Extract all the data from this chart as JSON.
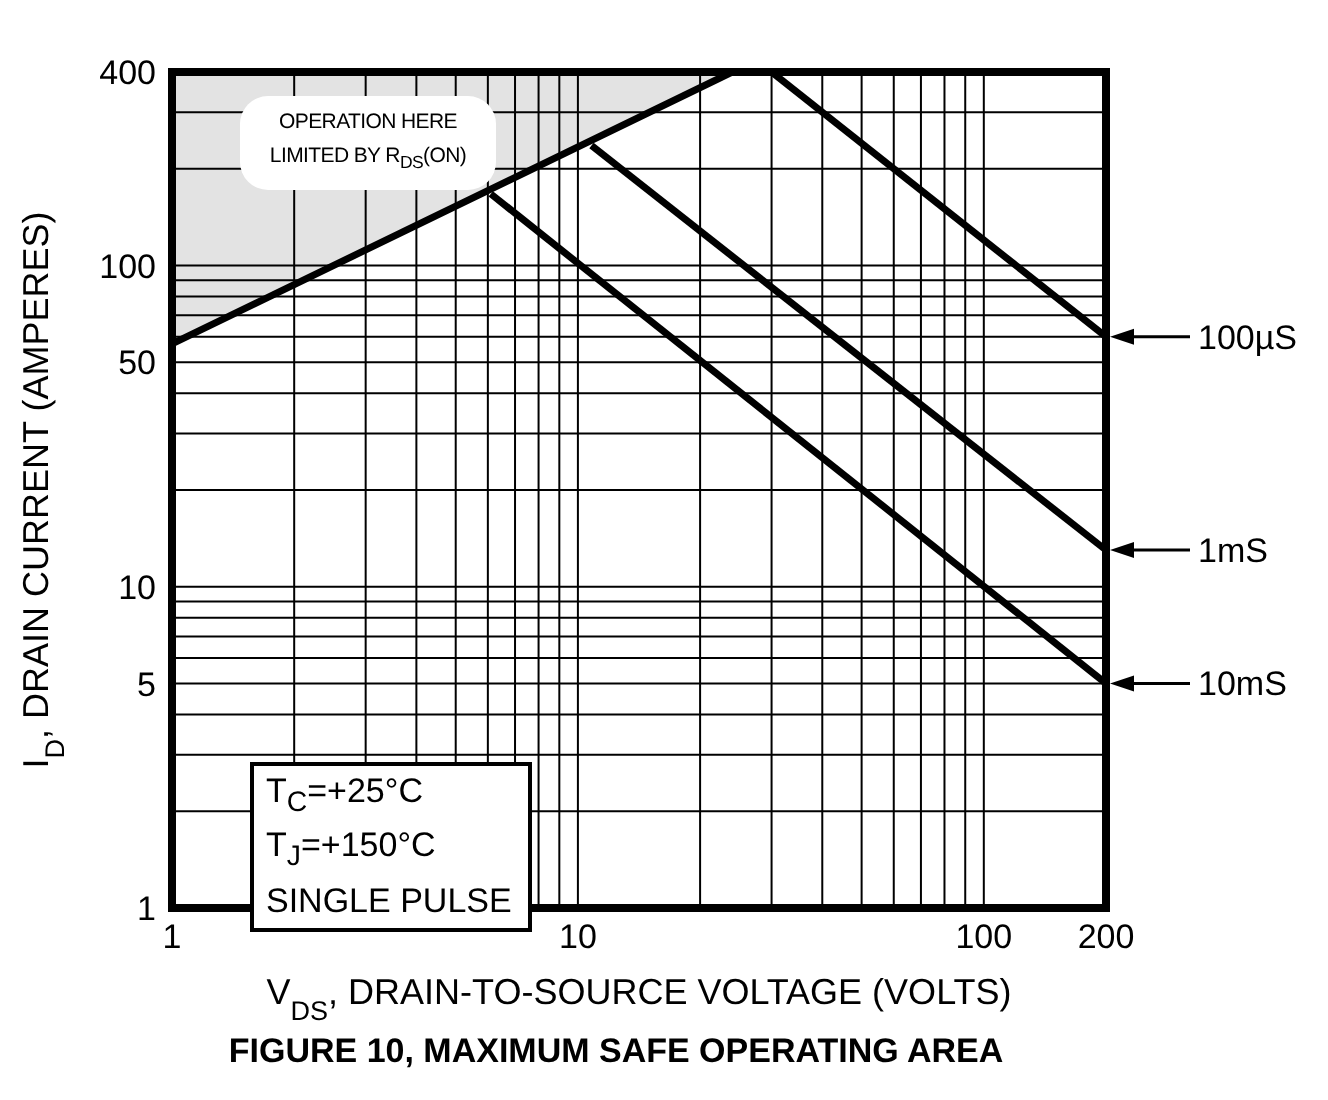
{
  "chart_data": {
    "type": "line",
    "title": "FIGURE 10, MAXIMUM SAFE OPERATING AREA",
    "xlabel": "V$_{DS}$, DRAIN-TO-SOURCE VOLTAGE (VOLTS)",
    "ylabel": "I$_{D}$, DRAIN CURRENT (AMPERES)",
    "annotations": [
      "OPERATION HERE LIMITED BY R$_{DS}$(ON)",
      "T$_{C}$=+25°C",
      "T$_{J}$=+150°C",
      "SINGLE PULSE"
    ],
    "log": "xy",
    "grid": true,
    "legend": "right",
    "marker": "none",
    "line_style": "solid",
    "xlim": [
      1,
      200
    ],
    "ylim": [
      1,
      400
    ],
    "xticks": [
      1,
      {
        "value": 2,
        "label": null
      },
      {
        "value": 3,
        "label": null
      },
      {
        "value": 4,
        "label": null
      },
      {
        "value": 5,
        "label": null
      },
      {
        "value": 6,
        "label": null
      },
      {
        "value": 7,
        "label": null
      },
      {
        "value": 8,
        "label": null
      },
      {
        "value": 9,
        "label": null
      },
      10,
      {
        "value": 20,
        "label": null
      },
      {
        "value": 30,
        "label": null
      },
      {
        "value": 40,
        "label": null
      },
      {
        "value": 50,
        "label": null
      },
      {
        "value": 60,
        "label": null
      },
      {
        "value": 70,
        "label": null
      },
      {
        "value": 80,
        "label": null
      },
      {
        "value": 90,
        "label": null
      },
      100,
      200
    ],
    "yticks": [
      1,
      {
        "value": 2,
        "label": null
      },
      {
        "value": 3,
        "label": null
      },
      {
        "value": 4,
        "label": null
      },
      5,
      {
        "value": 6,
        "label": null
      },
      {
        "value": 7,
        "label": null
      },
      {
        "value": 8,
        "label": null
      },
      {
        "value": 9,
        "label": null
      },
      10,
      {
        "value": 20,
        "label": null
      },
      {
        "value": 30,
        "label": null
      },
      {
        "value": 40,
        "label": null
      },
      50,
      {
        "value": 60,
        "label": null
      },
      {
        "value": 70,
        "label": null
      },
      {
        "value": 80,
        "label": null
      },
      {
        "value": 90,
        "label": null
      },
      100,
      {
        "value": 200,
        "label": null
      },
      {
        "value": 300,
        "label": null
      },
      400
    ],
    "series": [
      {
        "color": "#000000",
        "x": [
          1,
          24
        ],
        "values": [
          57,
          400
        ],
        "lower": [
          57,
          400
        ],
        "upper": [
          400,
          400
        ]
      },
      {
        "name": "100µS",
        "color": "#000000",
        "x": [
          30,
          200
        ],
        "values": [
          400,
          60
        ]
      },
      {
        "name": "1mS",
        "color": "#000000",
        "x": [
          10.8,
          200
        ],
        "values": [
          236,
          13
        ]
      },
      {
        "name": "10mS",
        "color": "#000000",
        "x": [
          6.1,
          200
        ],
        "values": [
          167,
          5
        ]
      }
    ]
  }
}
